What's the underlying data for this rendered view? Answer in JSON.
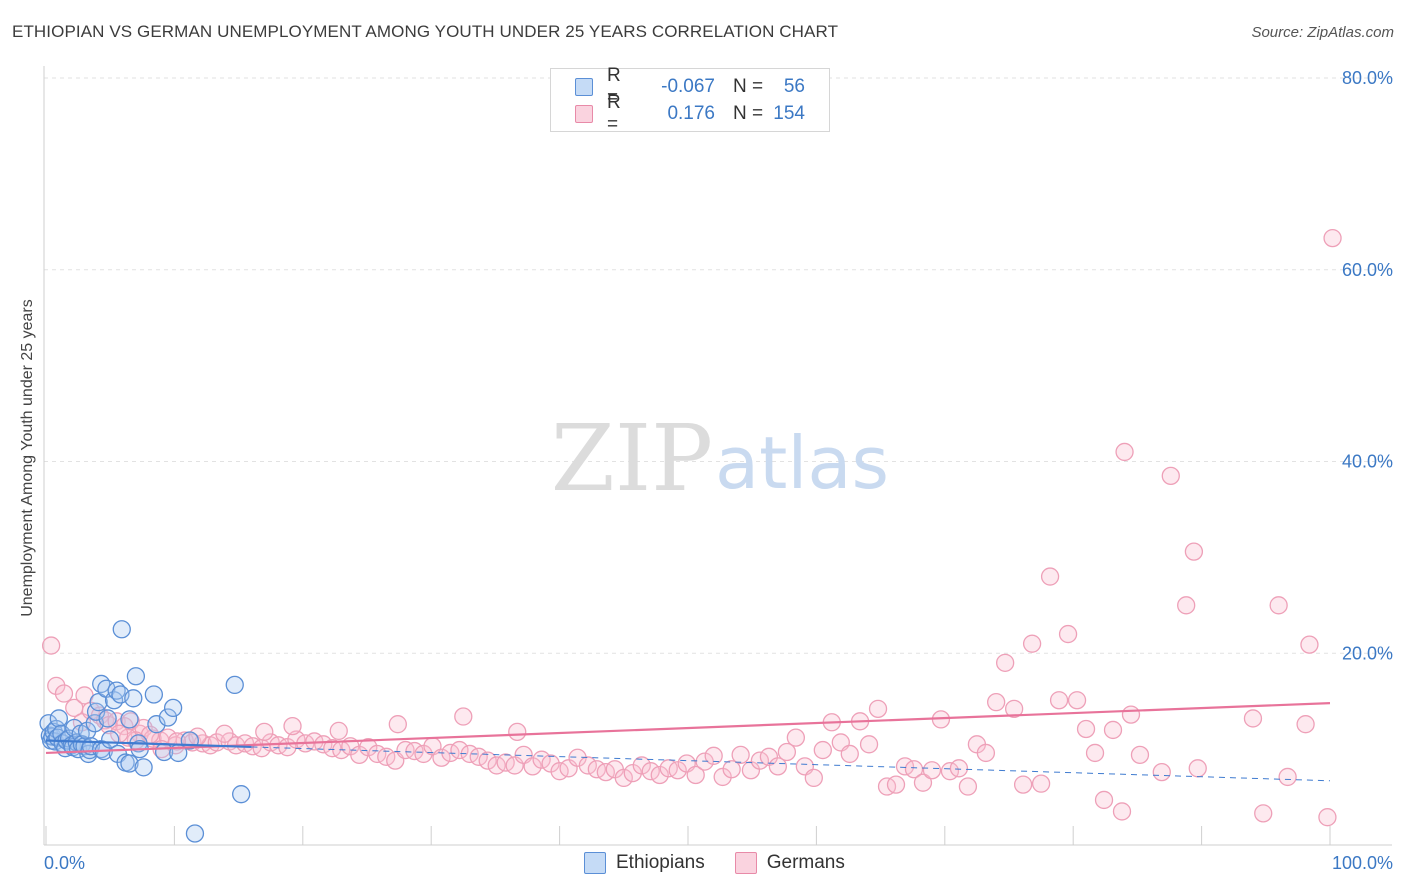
{
  "header": {
    "title": "ETHIOPIAN VS GERMAN UNEMPLOYMENT AMONG YOUTH UNDER 25 YEARS CORRELATION CHART",
    "source": "Source: ZipAtlas.com"
  },
  "watermark": {
    "zip": "ZIP",
    "atlas": "atlas"
  },
  "legend": {
    "rows": [
      {
        "r_label": "R =",
        "r_value": "-0.067",
        "n_label": "N =",
        "n_value": "56",
        "color": "#a8c8f0",
        "border": "#5b8fd6"
      },
      {
        "r_label": "R =",
        "r_value": "0.176",
        "n_label": "N =",
        "n_value": "154",
        "color": "#f8c0d0",
        "border": "#e88aa8"
      }
    ]
  },
  "bottom_legend": {
    "ethiopians": "Ethiopians",
    "germans": "Germans"
  },
  "chart_data": {
    "type": "scatter",
    "title": "ETHIOPIAN VS GERMAN UNEMPLOYMENT AMONG YOUTH UNDER 25 YEARS CORRELATION CHART",
    "xlabel": "",
    "ylabel": "Unemployment Among Youth under 25 years",
    "xlim": [
      0,
      100
    ],
    "ylim": [
      0,
      80
    ],
    "x_tick_labels": [
      "0.0%",
      "100.0%"
    ],
    "y_tick_labels": [
      "20.0%",
      "40.0%",
      "60.0%",
      "80.0%"
    ],
    "y_ticks": [
      20,
      40,
      60,
      80
    ],
    "grid": true,
    "legend_position": "top-center",
    "colors": {
      "ethiopians": "#5b8fd6",
      "germans": "#e88aa8",
      "axis_label": "#3b78c4"
    },
    "series": [
      {
        "name": "Ethiopians",
        "trend": {
          "x": [
            0,
            100
          ],
          "y": [
            10.9,
            6.7
          ],
          "style": "solid-then-dashed"
        },
        "points": [
          [
            0.2,
            12.7
          ],
          [
            0.3,
            11.4
          ],
          [
            0.4,
            10.9
          ],
          [
            0.5,
            11.3
          ],
          [
            0.6,
            11.8
          ],
          [
            0.7,
            10.8
          ],
          [
            0.8,
            12.1
          ],
          [
            0.9,
            11.2
          ],
          [
            1.0,
            13.2
          ],
          [
            1.2,
            11.6
          ],
          [
            1.3,
            10.6
          ],
          [
            1.5,
            10.1
          ],
          [
            1.6,
            10.9
          ],
          [
            1.8,
            11.1
          ],
          [
            2.0,
            10.4
          ],
          [
            2.1,
            10.2
          ],
          [
            2.2,
            12.2
          ],
          [
            2.4,
            10.7
          ],
          [
            2.5,
            10.0
          ],
          [
            2.7,
            11.6
          ],
          [
            2.8,
            10.5
          ],
          [
            3.0,
            10.3
          ],
          [
            3.2,
            11.9
          ],
          [
            3.3,
            9.5
          ],
          [
            3.4,
            9.9
          ],
          [
            3.5,
            10.3
          ],
          [
            3.8,
            12.7
          ],
          [
            3.9,
            13.9
          ],
          [
            4.1,
            14.9
          ],
          [
            4.3,
            10.0
          ],
          [
            4.3,
            16.8
          ],
          [
            4.5,
            9.8
          ],
          [
            4.7,
            16.3
          ],
          [
            4.8,
            13.2
          ],
          [
            5.0,
            11.0
          ],
          [
            5.3,
            15.1
          ],
          [
            5.5,
            16.1
          ],
          [
            5.6,
            9.5
          ],
          [
            5.8,
            15.7
          ],
          [
            5.9,
            22.5
          ],
          [
            6.2,
            8.6
          ],
          [
            6.5,
            8.5
          ],
          [
            6.5,
            13.1
          ],
          [
            6.8,
            15.3
          ],
          [
            7.0,
            17.6
          ],
          [
            7.2,
            10.6
          ],
          [
            7.3,
            10.0
          ],
          [
            7.6,
            8.1
          ],
          [
            8.4,
            15.7
          ],
          [
            8.6,
            12.6
          ],
          [
            9.2,
            9.7
          ],
          [
            9.5,
            13.3
          ],
          [
            9.9,
            14.3
          ],
          [
            10.3,
            9.6
          ],
          [
            11.2,
            10.9
          ],
          [
            11.6,
            1.2
          ],
          [
            14.7,
            16.7
          ],
          [
            15.2,
            5.3
          ]
        ]
      },
      {
        "name": "Germans",
        "trend": {
          "x": [
            0,
            100
          ],
          "y": [
            9.6,
            14.8
          ],
          "style": "solid"
        },
        "points": [
          [
            0.4,
            20.8
          ],
          [
            0.8,
            16.6
          ],
          [
            1.4,
            15.8
          ],
          [
            2.2,
            14.3
          ],
          [
            2.8,
            12.8
          ],
          [
            3.0,
            15.6
          ],
          [
            3.5,
            14.0
          ],
          [
            4.2,
            13.5
          ],
          [
            4.6,
            13.0
          ],
          [
            4.9,
            12.5
          ],
          [
            5.5,
            12.9
          ],
          [
            6.1,
            12.4
          ],
          [
            6.6,
            12.9
          ],
          [
            7.3,
            11.6
          ],
          [
            7.6,
            12.2
          ],
          [
            8.3,
            11.1
          ],
          [
            8.9,
            10.9
          ],
          [
            9.5,
            11.2
          ],
          [
            10.1,
            10.4
          ],
          [
            10.8,
            10.9
          ],
          [
            11.4,
            10.7
          ],
          [
            12.2,
            10.6
          ],
          [
            12.8,
            10.4
          ],
          [
            13.3,
            10.7
          ],
          [
            14.3,
            10.8
          ],
          [
            14.8,
            10.4
          ],
          [
            15.5,
            10.6
          ],
          [
            16.1,
            10.3
          ],
          [
            16.8,
            10.1
          ],
          [
            17.5,
            10.7
          ],
          [
            18.1,
            10.4
          ],
          [
            18.8,
            10.2
          ],
          [
            19.5,
            11.0
          ],
          [
            20.2,
            10.6
          ],
          [
            20.9,
            10.8
          ],
          [
            21.6,
            10.5
          ],
          [
            22.3,
            10.1
          ],
          [
            23.0,
            9.9
          ],
          [
            23.7,
            10.3
          ],
          [
            24.4,
            9.4
          ],
          [
            25.1,
            10.2
          ],
          [
            25.8,
            9.5
          ],
          [
            26.5,
            9.2
          ],
          [
            27.2,
            8.8
          ],
          [
            28.0,
            9.9
          ],
          [
            28.7,
            9.8
          ],
          [
            29.4,
            9.5
          ],
          [
            30.1,
            10.3
          ],
          [
            30.8,
            9.1
          ],
          [
            31.5,
            9.6
          ],
          [
            32.2,
            9.9
          ],
          [
            33.0,
            9.5
          ],
          [
            33.7,
            9.2
          ],
          [
            34.4,
            8.8
          ],
          [
            35.1,
            8.3
          ],
          [
            35.8,
            8.6
          ],
          [
            36.5,
            8.3
          ],
          [
            37.2,
            9.4
          ],
          [
            37.9,
            8.2
          ],
          [
            38.6,
            8.9
          ],
          [
            39.3,
            8.5
          ],
          [
            40.0,
            7.7
          ],
          [
            40.7,
            8.0
          ],
          [
            41.4,
            9.1
          ],
          [
            42.2,
            8.3
          ],
          [
            42.9,
            7.9
          ],
          [
            43.6,
            7.6
          ],
          [
            44.3,
            7.9
          ],
          [
            45.0,
            7.0
          ],
          [
            45.7,
            7.5
          ],
          [
            46.4,
            8.3
          ],
          [
            47.1,
            7.7
          ],
          [
            47.8,
            7.3
          ],
          [
            48.5,
            8.0
          ],
          [
            49.2,
            7.8
          ],
          [
            49.9,
            8.5
          ],
          [
            50.6,
            7.3
          ],
          [
            51.3,
            8.7
          ],
          [
            52.0,
            9.3
          ],
          [
            52.7,
            7.1
          ],
          [
            53.4,
            7.9
          ],
          [
            54.1,
            9.4
          ],
          [
            54.9,
            7.8
          ],
          [
            55.6,
            8.8
          ],
          [
            56.3,
            9.2
          ],
          [
            57.0,
            8.2
          ],
          [
            57.7,
            9.7
          ],
          [
            58.4,
            11.2
          ],
          [
            59.1,
            8.2
          ],
          [
            59.8,
            7.0
          ],
          [
            60.5,
            9.9
          ],
          [
            61.2,
            12.8
          ],
          [
            61.9,
            10.7
          ],
          [
            62.6,
            9.5
          ],
          [
            63.4,
            12.9
          ],
          [
            64.1,
            10.5
          ],
          [
            64.8,
            14.2
          ],
          [
            65.5,
            6.1
          ],
          [
            66.2,
            6.3
          ],
          [
            66.9,
            8.2
          ],
          [
            67.6,
            7.9
          ],
          [
            68.3,
            6.5
          ],
          [
            69.0,
            7.8
          ],
          [
            69.7,
            13.1
          ],
          [
            70.4,
            7.7
          ],
          [
            71.1,
            8.0
          ],
          [
            71.8,
            6.1
          ],
          [
            72.5,
            10.5
          ],
          [
            73.2,
            9.6
          ],
          [
            74.0,
            14.9
          ],
          [
            74.7,
            19.0
          ],
          [
            75.4,
            14.2
          ],
          [
            76.1,
            6.3
          ],
          [
            76.8,
            21.0
          ],
          [
            77.5,
            6.4
          ],
          [
            78.2,
            28.0
          ],
          [
            78.9,
            15.1
          ],
          [
            79.6,
            22.0
          ],
          [
            80.3,
            15.1
          ],
          [
            81.0,
            12.1
          ],
          [
            81.7,
            9.6
          ],
          [
            82.4,
            4.7
          ],
          [
            83.1,
            12.0
          ],
          [
            83.8,
            3.5
          ],
          [
            84.0,
            41.0
          ],
          [
            84.5,
            13.6
          ],
          [
            85.2,
            9.4
          ],
          [
            86.9,
            7.6
          ],
          [
            87.6,
            38.5
          ],
          [
            88.8,
            25.0
          ],
          [
            89.4,
            30.6
          ],
          [
            89.7,
            8.0
          ],
          [
            94.0,
            13.2
          ],
          [
            98.1,
            12.6
          ],
          [
            94.8,
            3.3
          ],
          [
            96.0,
            25.0
          ],
          [
            98.4,
            20.9
          ],
          [
            99.8,
            2.9
          ],
          [
            100.2,
            63.3
          ],
          [
            96.7,
            7.1
          ],
          [
            32.5,
            13.4
          ],
          [
            36.7,
            11.8
          ],
          [
            27.4,
            12.6
          ],
          [
            22.8,
            11.9
          ],
          [
            19.2,
            12.4
          ],
          [
            17.0,
            11.8
          ],
          [
            13.9,
            11.6
          ],
          [
            11.8,
            11.3
          ],
          [
            10.2,
            10.8
          ],
          [
            9.0,
            10.0
          ],
          [
            8.1,
            11.5
          ],
          [
            7.0,
            10.9
          ],
          [
            6.4,
            11.2
          ],
          [
            5.7,
            11.6
          ]
        ]
      }
    ]
  }
}
